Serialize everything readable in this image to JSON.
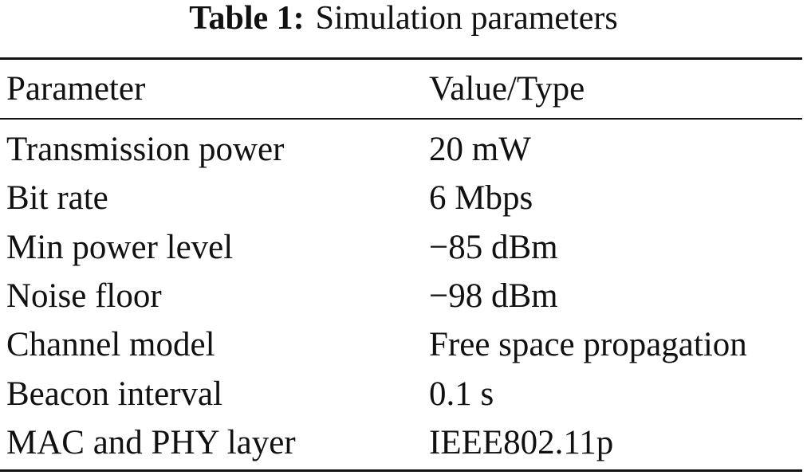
{
  "caption": {
    "label": "Table 1:",
    "text": "Simulation parameters"
  },
  "table": {
    "header": [
      "Parameter",
      "Value/Type"
    ],
    "rows": [
      [
        "Transmission power",
        "20 mW"
      ],
      [
        "Bit rate",
        "6 Mbps"
      ],
      [
        "Min power level",
        "−85 dBm"
      ],
      [
        "Noise floor",
        "−98 dBm"
      ],
      [
        "Channel model",
        "Free space propagation"
      ],
      [
        "Beacon interval",
        "0.1 s"
      ],
      [
        "MAC and PHY layer",
        "IEEE802.11p"
      ]
    ]
  }
}
